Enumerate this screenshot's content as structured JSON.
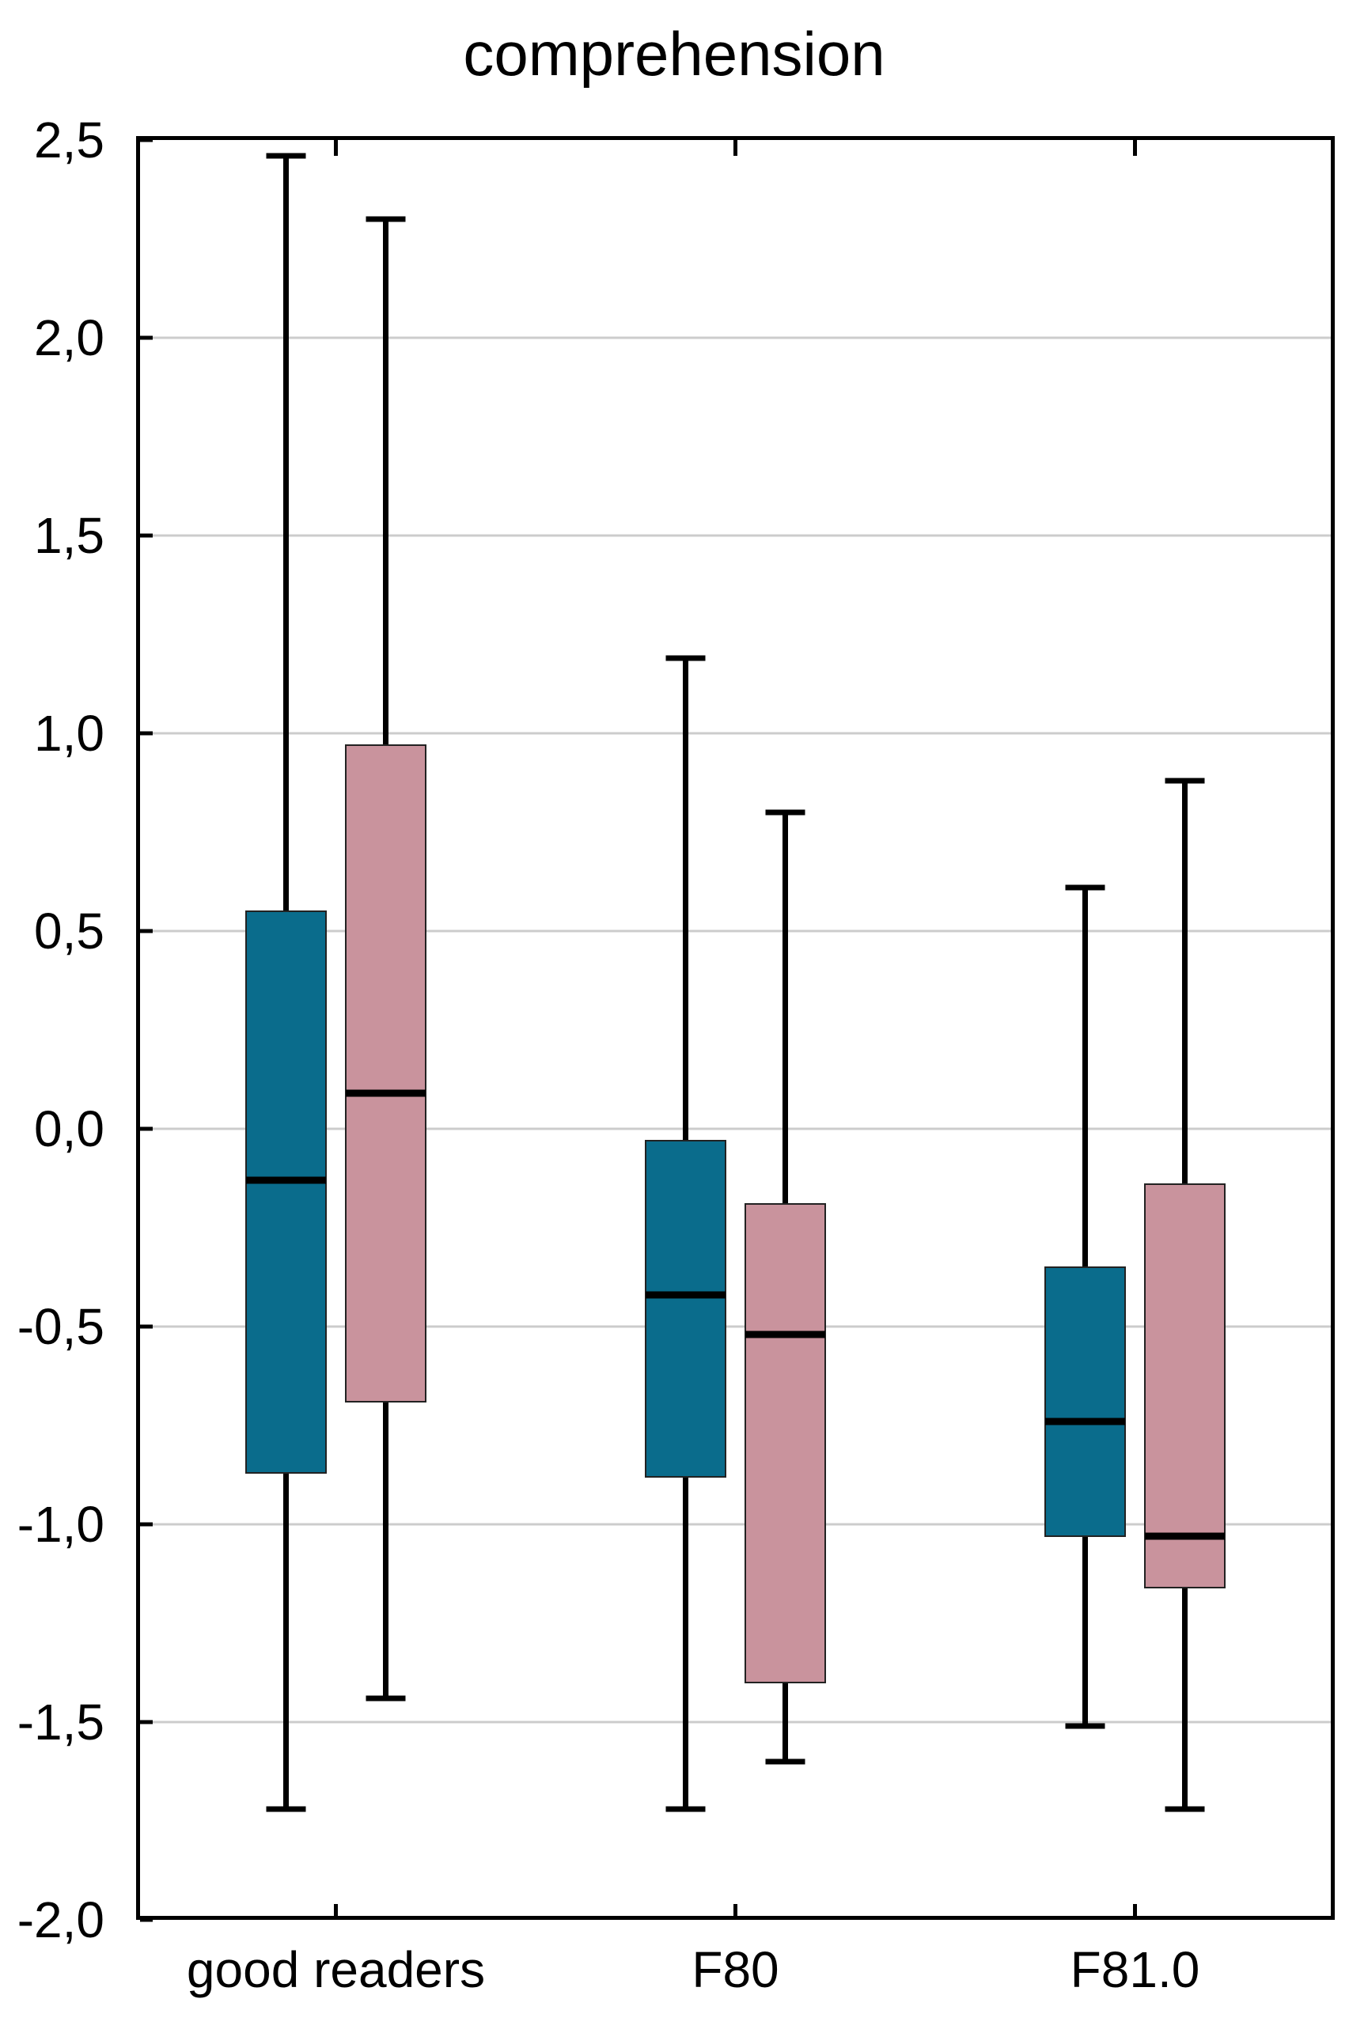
{
  "title": "comprehension",
  "y_axis": {
    "min": -2.0,
    "max": 2.5,
    "step": 0.5,
    "decimal_separator": ",",
    "ticks": [
      {
        "label": "2,5",
        "value": 2.5
      },
      {
        "label": "2,0",
        "value": 2.0
      },
      {
        "label": "1,5",
        "value": 1.5
      },
      {
        "label": "1,0",
        "value": 1.0
      },
      {
        "label": "0,5",
        "value": 0.5
      },
      {
        "label": "0,0",
        "value": 0.0
      },
      {
        "label": "-0,5",
        "value": -0.5
      },
      {
        "label": "-1,0",
        "value": -1.0
      },
      {
        "label": "-1,5",
        "value": -1.5
      },
      {
        "label": "-2,0",
        "value": -2.0
      }
    ]
  },
  "x_axis": {
    "categories": [
      "good readers",
      "F80",
      "F81.0"
    ]
  },
  "chart_data": {
    "type": "boxplot",
    "title": "comprehension",
    "categories": [
      "good readers",
      "F80",
      "F81.0"
    ],
    "ylim": [
      -2.0,
      2.5
    ],
    "grid": true,
    "legend": "none",
    "series": [
      {
        "name": "teal",
        "color": "#0A6C8C",
        "boxes": [
          {
            "category": "good readers",
            "whisker_low": -1.72,
            "q1": -0.87,
            "median": -0.13,
            "q3": 0.55,
            "whisker_high": 2.46
          },
          {
            "category": "F80",
            "whisker_low": -1.72,
            "q1": -0.88,
            "median": -0.42,
            "q3": -0.03,
            "whisker_high": 1.19
          },
          {
            "category": "F81.0",
            "whisker_low": -1.51,
            "q1": -1.03,
            "median": -0.74,
            "q3": -0.35,
            "whisker_high": 0.61
          }
        ]
      },
      {
        "name": "pink",
        "color": "#C9939D",
        "boxes": [
          {
            "category": "good readers",
            "whisker_low": -1.44,
            "q1": -0.69,
            "median": 0.09,
            "q3": 0.97,
            "whisker_high": 2.3
          },
          {
            "category": "F80",
            "whisker_low": -1.6,
            "q1": -1.4,
            "median": -0.52,
            "q3": -0.19,
            "whisker_high": 0.8
          },
          {
            "category": "F81.0",
            "whisker_low": -1.72,
            "q1": -1.16,
            "median": -1.03,
            "q3": -0.14,
            "whisker_high": 0.88
          }
        ]
      }
    ]
  },
  "colors": {
    "background": "#FFFFFF",
    "axis": "#000000",
    "gridline": "#CCCCCC",
    "box_border": "#222222",
    "median": "#000000",
    "whisker": "#000000",
    "teal": "#0A6C8C",
    "pink": "#C9939D"
  }
}
